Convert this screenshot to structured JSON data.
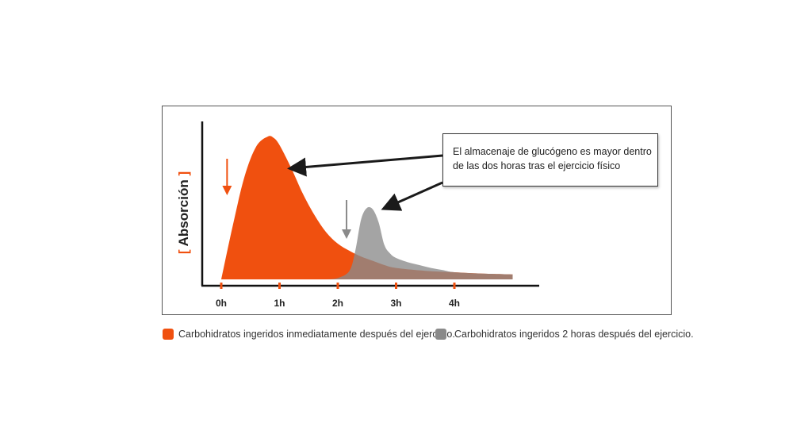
{
  "chart_data": {
    "type": "area",
    "ylabel": "Absorción",
    "ylabel_brackets": [
      "[",
      "]"
    ],
    "x_ticks": [
      {
        "value": 0,
        "label": "0h"
      },
      {
        "value": 1,
        "label": "1h"
      },
      {
        "value": 2,
        "label": "2h"
      },
      {
        "value": 3,
        "label": "3h"
      },
      {
        "value": 4,
        "label": "4h"
      }
    ],
    "xlim": [
      0,
      5
    ],
    "ylim": [
      0,
      1
    ],
    "series": [
      {
        "name": "Carbohidratos ingeridos inmediatamente después del ejercicio.",
        "color": "#f0500f",
        "x": [
          0,
          0.2,
          0.4,
          0.6,
          0.8,
          0.9,
          1.0,
          1.2,
          1.4,
          1.6,
          1.8,
          2.0,
          2.2,
          2.4,
          2.6,
          2.8,
          3.0,
          3.5,
          4.0,
          4.5,
          5.0
        ],
        "y": [
          0,
          0.38,
          0.72,
          0.93,
          1.0,
          0.99,
          0.94,
          0.78,
          0.6,
          0.45,
          0.33,
          0.25,
          0.2,
          0.16,
          0.13,
          0.1,
          0.08,
          0.06,
          0.05,
          0.04,
          0.035
        ]
      },
      {
        "name": "Carbohidratos ingeridos 2 horas después del ejercicio.",
        "color": "#8a8a8a",
        "x": [
          1.8,
          2.0,
          2.2,
          2.3,
          2.4,
          2.5,
          2.6,
          2.7,
          2.8,
          2.9,
          3.0,
          3.2,
          3.4,
          3.6,
          3.8,
          4.0,
          4.5,
          5.0
        ],
        "y": [
          0,
          0.01,
          0.06,
          0.2,
          0.42,
          0.5,
          0.49,
          0.4,
          0.24,
          0.18,
          0.15,
          0.12,
          0.1,
          0.08,
          0.065,
          0.05,
          0.04,
          0.035
        ]
      }
    ],
    "markers": [
      {
        "x": 0.1,
        "color": "#f0500f"
      },
      {
        "x": 2.15,
        "color": "#8a8a8a"
      }
    ],
    "annotation": {
      "lines": [
        "El almacenaje de glucógeno es mayor dentro",
        "de las dos horas tras el ejercicio físico"
      ]
    },
    "legend": [
      {
        "label": "Carbohidratos ingeridos inmediatamente después del ejercicio.",
        "color": "#f0500f"
      },
      {
        "label": "Carbohidratos ingeridos 2 horas después del ejercicio.",
        "color": "#8a8a8a"
      }
    ]
  }
}
